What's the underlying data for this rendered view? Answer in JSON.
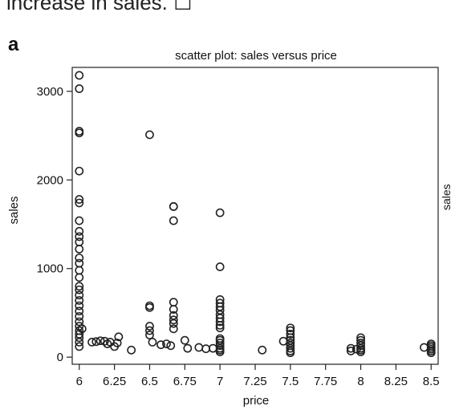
{
  "context": {
    "clipped_text": "increase in sales. ☐",
    "panel_letter": "a",
    "right_edge_clipped_label": "sales"
  },
  "chart_data": {
    "type": "scatter",
    "title": "scatter plot: sales versus price",
    "xlabel": "price",
    "ylabel": "sales",
    "xlim": [
      5.95,
      8.55
    ],
    "ylim": [
      -80,
      3270
    ],
    "x_ticks": [
      6,
      6.25,
      6.5,
      6.75,
      7,
      7.25,
      7.5,
      7.75,
      8,
      8.25,
      8.5
    ],
    "x_tick_labels": [
      "6",
      "6.25",
      "6.5",
      "6.75",
      "7",
      "7.25",
      "7.5",
      "7.75",
      "8",
      "8.25",
      "8.5"
    ],
    "y_ticks": [
      0,
      1000,
      2000,
      3000
    ],
    "y_tick_labels": [
      "0",
      "1000",
      "2000",
      "3000"
    ],
    "marker": "open-circle",
    "grid": false,
    "legend": "none",
    "points": [
      [
        6,
        3180
      ],
      [
        6,
        3030
      ],
      [
        6,
        2550
      ],
      [
        6,
        2530
      ],
      [
        6,
        2100
      ],
      [
        6,
        1780
      ],
      [
        6,
        1740
      ],
      [
        6,
        1540
      ],
      [
        6,
        1420
      ],
      [
        6,
        1360
      ],
      [
        6,
        1300
      ],
      [
        6,
        1220
      ],
      [
        6,
        1120
      ],
      [
        6,
        1060
      ],
      [
        6,
        980
      ],
      [
        6,
        900
      ],
      [
        6,
        800
      ],
      [
        6,
        760
      ],
      [
        6,
        700
      ],
      [
        6,
        640
      ],
      [
        6,
        580
      ],
      [
        6,
        520
      ],
      [
        6,
        460
      ],
      [
        6,
        400
      ],
      [
        6,
        350
      ],
      [
        6,
        300
      ],
      [
        6,
        260
      ],
      [
        6,
        220
      ],
      [
        6,
        170
      ],
      [
        6,
        120
      ],
      [
        6.02,
        320
      ],
      [
        6.09,
        170
      ],
      [
        6.12,
        175
      ],
      [
        6.15,
        185
      ],
      [
        6.18,
        180
      ],
      [
        6.2,
        150
      ],
      [
        6.22,
        170
      ],
      [
        6.25,
        120
      ],
      [
        6.27,
        160
      ],
      [
        6.28,
        230
      ],
      [
        6.37,
        80
      ],
      [
        6.5,
        2510
      ],
      [
        6.5,
        580
      ],
      [
        6.5,
        560
      ],
      [
        6.5,
        350
      ],
      [
        6.5,
        300
      ],
      [
        6.5,
        250
      ],
      [
        6.52,
        170
      ],
      [
        6.58,
        140
      ],
      [
        6.62,
        150
      ],
      [
        6.65,
        130
      ],
      [
        6.67,
        1700
      ],
      [
        6.67,
        1700
      ],
      [
        6.67,
        1540
      ],
      [
        6.67,
        620
      ],
      [
        6.67,
        540
      ],
      [
        6.67,
        470
      ],
      [
        6.67,
        420
      ],
      [
        6.67,
        380
      ],
      [
        6.67,
        320
      ],
      [
        6.75,
        190
      ],
      [
        6.77,
        100
      ],
      [
        6.85,
        110
      ],
      [
        6.9,
        95
      ],
      [
        6.95,
        100
      ],
      [
        7,
        1630
      ],
      [
        7,
        1020
      ],
      [
        7,
        650
      ],
      [
        7,
        610
      ],
      [
        7,
        570
      ],
      [
        7,
        530
      ],
      [
        7,
        480
      ],
      [
        7,
        440
      ],
      [
        7,
        400
      ],
      [
        7,
        360
      ],
      [
        7,
        330
      ],
      [
        7,
        210
      ],
      [
        7,
        190
      ],
      [
        7,
        160
      ],
      [
        7,
        130
      ],
      [
        7,
        100
      ],
      [
        7,
        80
      ],
      [
        7,
        60
      ],
      [
        7.3,
        80
      ],
      [
        7.45,
        180
      ],
      [
        7.5,
        330
      ],
      [
        7.5,
        300
      ],
      [
        7.5,
        260
      ],
      [
        7.5,
        220
      ],
      [
        7.5,
        190
      ],
      [
        7.5,
        160
      ],
      [
        7.5,
        130
      ],
      [
        7.5,
        100
      ],
      [
        7.5,
        70
      ],
      [
        7.5,
        50
      ],
      [
        7.93,
        100
      ],
      [
        7.93,
        70
      ],
      [
        7.97,
        90
      ],
      [
        8,
        220
      ],
      [
        8,
        190
      ],
      [
        8,
        160
      ],
      [
        8,
        130
      ],
      [
        8,
        100
      ],
      [
        8,
        80
      ],
      [
        8,
        60
      ],
      [
        8.45,
        110
      ],
      [
        8.5,
        150
      ],
      [
        8.5,
        130
      ],
      [
        8.5,
        110
      ],
      [
        8.5,
        90
      ],
      [
        8.5,
        70
      ],
      [
        8.5,
        50
      ]
    ]
  }
}
